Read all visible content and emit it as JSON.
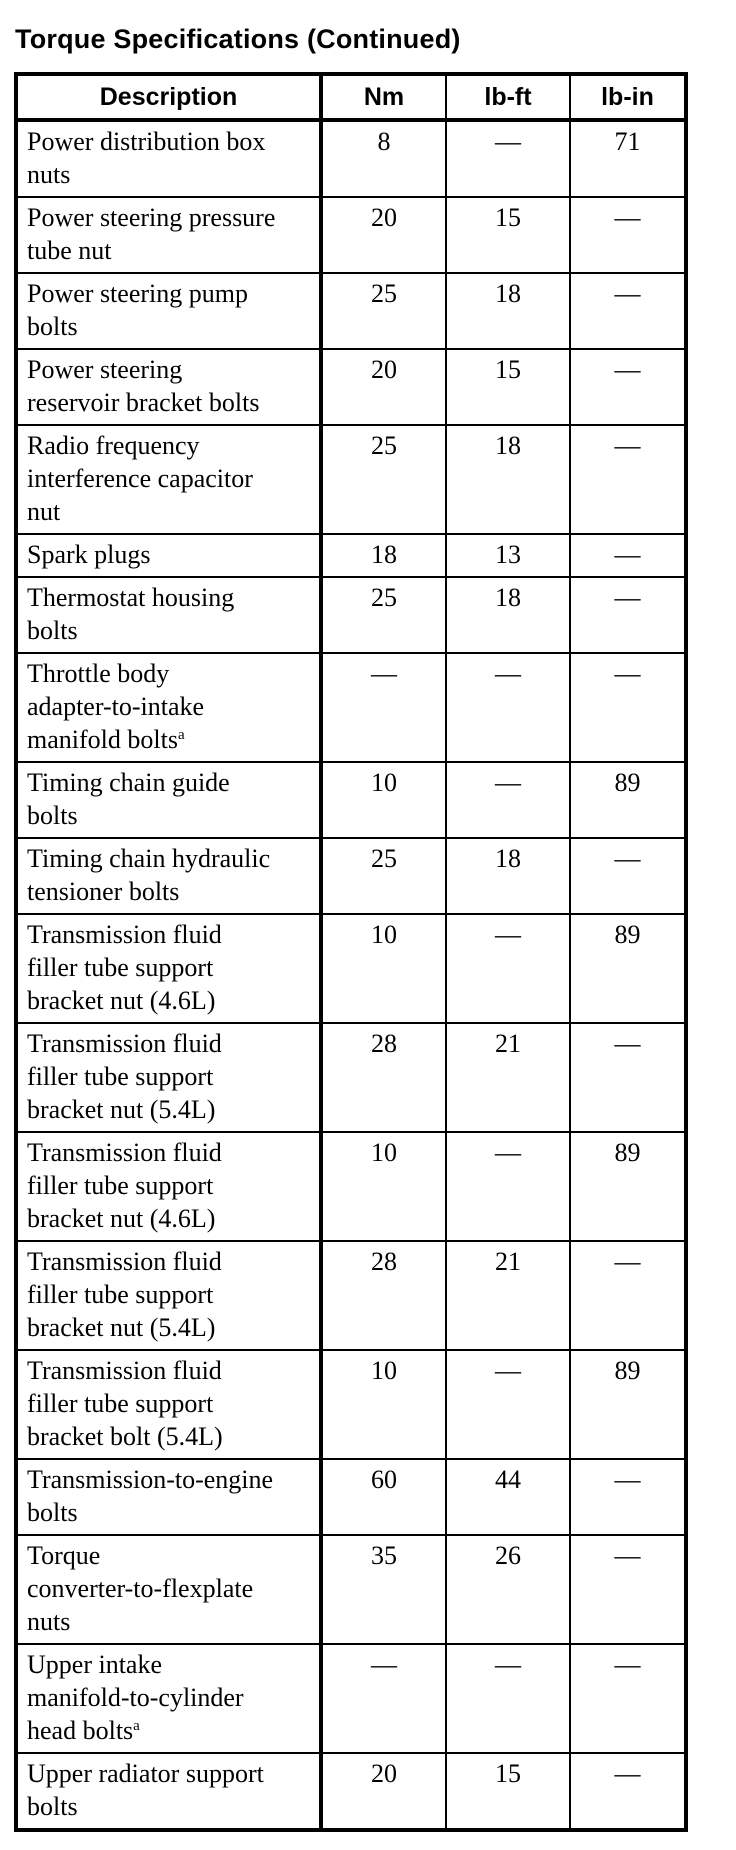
{
  "page": {
    "title": "Torque Specifications (Continued)"
  },
  "table": {
    "columns": [
      "Description",
      "Nm",
      "lb-ft",
      "lb-in"
    ],
    "dash": "—",
    "rows": [
      {
        "description": "Power distribution box nuts",
        "nm": "8",
        "lb_ft": "—",
        "lb_in": "71"
      },
      {
        "description": "Power steering pressure tube nut",
        "nm": "20",
        "lb_ft": "15",
        "lb_in": "—"
      },
      {
        "description": "Power steering pump bolts",
        "nm": "25",
        "lb_ft": "18",
        "lb_in": "—"
      },
      {
        "description": "Power steering reservoir bracket bolts",
        "nm": "20",
        "lb_ft": "15",
        "lb_in": "—"
      },
      {
        "description": "Radio frequency interference capacitor nut",
        "nm": "25",
        "lb_ft": "18",
        "lb_in": "—"
      },
      {
        "description": "Spark plugs",
        "nm": "18",
        "lb_ft": "13",
        "lb_in": "—"
      },
      {
        "description": "Thermostat housing bolts",
        "nm": "25",
        "lb_ft": "18",
        "lb_in": "—"
      },
      {
        "description": "Throttle body adapter-to-intake manifold bolts",
        "footnote": "a",
        "nm": "—",
        "lb_ft": "—",
        "lb_in": "—"
      },
      {
        "description": "Timing chain guide bolts",
        "nm": "10",
        "lb_ft": "—",
        "lb_in": "89"
      },
      {
        "description": "Timing chain hydraulic tensioner bolts",
        "nm": "25",
        "lb_ft": "18",
        "lb_in": "—"
      },
      {
        "description": "Transmission fluid filler tube support bracket nut (4.6L)",
        "nm": "10",
        "lb_ft": "—",
        "lb_in": "89"
      },
      {
        "description": "Transmission fluid filler tube support bracket nut (5.4L)",
        "nm": "28",
        "lb_ft": "21",
        "lb_in": "—"
      },
      {
        "description": "Transmission fluid filler tube support bracket nut (4.6L)",
        "nm": "10",
        "lb_ft": "—",
        "lb_in": "89"
      },
      {
        "description": "Transmission fluid filler tube support bracket nut (5.4L)",
        "nm": "28",
        "lb_ft": "21",
        "lb_in": "—"
      },
      {
        "description": "Transmission fluid filler tube support bracket bolt (5.4L)",
        "nm": "10",
        "lb_ft": "—",
        "lb_in": "89"
      },
      {
        "description": "Transmission-to-engine bolts",
        "nm": "60",
        "lb_ft": "44",
        "lb_in": "—"
      },
      {
        "description": "Torque converter-to-flexplate nuts",
        "nm": "35",
        "lb_ft": "26",
        "lb_in": "—"
      },
      {
        "description": "Upper intake manifold-to-cylinder head bolts",
        "footnote": "a",
        "nm": "—",
        "lb_ft": "—",
        "lb_in": "—"
      },
      {
        "description": "Upper radiator support bolts",
        "nm": "20",
        "lb_ft": "15",
        "lb_in": "—"
      }
    ]
  }
}
